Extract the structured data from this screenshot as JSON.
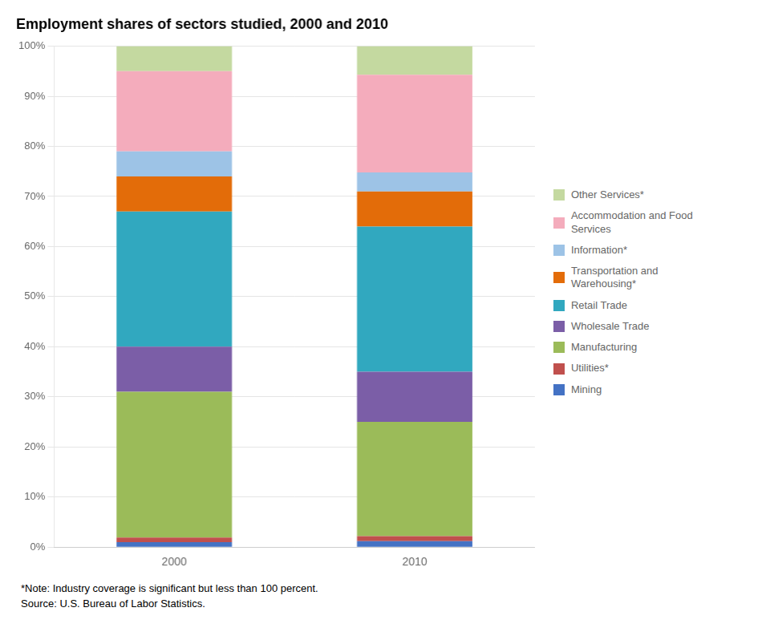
{
  "chart_data": {
    "type": "bar",
    "title": "Employment shares of sectors studied, 2000 and 2010",
    "categories": [
      "2000",
      "2010"
    ],
    "series": [
      {
        "name": "Mining",
        "color": "#4472C4",
        "values": [
          1.0,
          1.2
        ]
      },
      {
        "name": "Utilities*",
        "color": "#C0504D",
        "values": [
          0.9,
          1.0
        ]
      },
      {
        "name": "Manufacturing",
        "color": "#9BBB59",
        "values": [
          29.1,
          22.8
        ]
      },
      {
        "name": "Wholesale Trade",
        "color": "#7B5EA7",
        "values": [
          9.0,
          10.0
        ]
      },
      {
        "name": "Retail Trade",
        "color": "#31A8BF",
        "values": [
          27.0,
          29.0
        ]
      },
      {
        "name": "Transportation and\nWarehousing*",
        "color": "#E36C09",
        "values": [
          7.0,
          7.0
        ]
      },
      {
        "name": "Information*",
        "color": "#9DC3E6",
        "values": [
          5.0,
          3.8
        ]
      },
      {
        "name": "Accommodation and Food\nServices",
        "color": "#F4ACBC",
        "values": [
          16.0,
          19.5
        ]
      },
      {
        "name": "Other Services*",
        "color": "#C4D9A0",
        "values": [
          5.0,
          5.7
        ]
      }
    ],
    "stacked": true,
    "ylim": [
      0,
      100
    ],
    "yticks": [
      {
        "value": 0,
        "label": "0%"
      },
      {
        "value": 10,
        "label": "10%"
      },
      {
        "value": 20,
        "label": "20%"
      },
      {
        "value": 30,
        "label": "30%"
      },
      {
        "value": 40,
        "label": "40%"
      },
      {
        "value": 50,
        "label": "50%"
      },
      {
        "value": 60,
        "label": "60%"
      },
      {
        "value": 70,
        "label": "70%"
      },
      {
        "value": 80,
        "label": "80%"
      },
      {
        "value": 90,
        "label": "90%"
      },
      {
        "value": 100,
        "label": "100%"
      }
    ],
    "grid": true,
    "legend": "right",
    "annotations": [
      "*Note: Industry coverage is significant but less than 100 percent.",
      "Source: U.S. Bureau of Labor Statistics."
    ]
  }
}
